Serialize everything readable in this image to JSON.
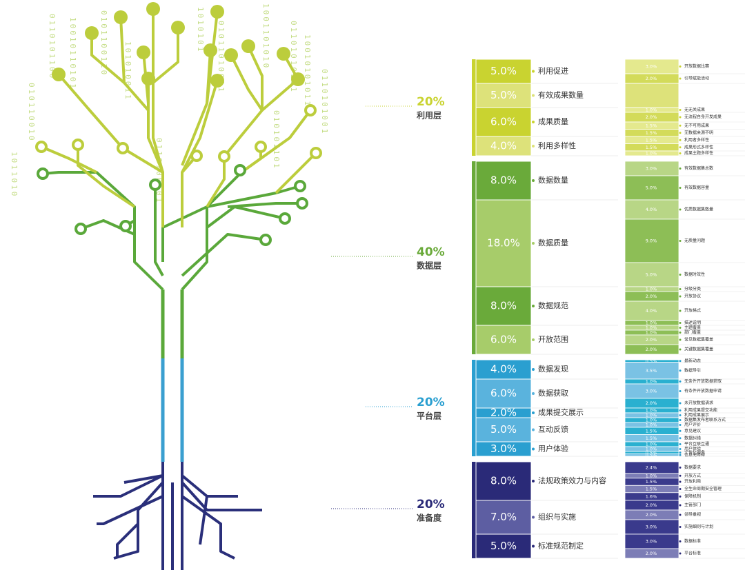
{
  "tree": {
    "binary": [
      "010110010",
      "0110101100",
      "10010110101",
      "0101100110",
      "101010011",
      "0110100101",
      "1010101",
      "01011010011",
      "1001101010",
      "01101010101",
      "10010101011",
      "0110101001",
      "1011010",
      "010101101"
    ]
  },
  "layers": [
    {
      "percent": "20%",
      "name": "利用层",
      "indicators": [
        {
          "value": "5.0%",
          "name": "利用促进",
          "subs": [
            {
              "value": "3.0%",
              "name": "开放数据比赛"
            },
            {
              "value": "2.0%",
              "name": "引导赋能活动"
            }
          ]
        },
        {
          "value": "5.0%",
          "name": "有效成果数量",
          "subs": []
        },
        {
          "value": "6.0%",
          "name": "成果质量",
          "subs": [
            {
              "value": "1.0%",
              "name": "无无关成果"
            },
            {
              "value": "2.0%",
              "name": "无流程自身开发成果"
            },
            {
              "value": "1.5%",
              "name": "无不可用成果"
            },
            {
              "value": "1.5%",
              "name": "无数据来源不明"
            }
          ]
        },
        {
          "value": "4.0%",
          "name": "利用多样性",
          "subs": [
            {
              "value": "1.5%",
              "name": "利用者多样性"
            },
            {
              "value": "1.5%",
              "name": "成果形式多样性"
            },
            {
              "value": "1.0%",
              "name": "成果主题多样性"
            }
          ]
        }
      ]
    },
    {
      "percent": "40%",
      "name": "数据层",
      "indicators": [
        {
          "value": "8.0%",
          "name": "数据数量",
          "subs": [
            {
              "value": "3.0%",
              "name": "有效数据集总数"
            },
            {
              "value": "5.0%",
              "name": "有效数据容量"
            }
          ]
        },
        {
          "value": "18.0%",
          "name": "数据质量",
          "subs": [
            {
              "value": "4.0%",
              "name": "优质数据集数量"
            },
            {
              "value": "9.0%",
              "name": "无质量问题"
            },
            {
              "value": "5.0%",
              "name": "数据时效性"
            }
          ]
        },
        {
          "value": "8.0%",
          "name": "数据规范",
          "subs": [
            {
              "value": "1.0%",
              "name": "分级分类"
            },
            {
              "value": "2.0%",
              "name": "开放协议"
            },
            {
              "value": "4.0%",
              "name": "开放格式"
            },
            {
              "value": "1.0%",
              "name": "描述说明"
            }
          ]
        },
        {
          "value": "6.0%",
          "name": "开放范围",
          "subs": [
            {
              "value": "1.0%",
              "name": "主题覆盖"
            },
            {
              "value": "1.0%",
              "name": "部门覆盖"
            },
            {
              "value": "2.0%",
              "name": "常见数据集覆盖"
            },
            {
              "value": "2.0%",
              "name": "关键数据集覆盖"
            }
          ]
        }
      ]
    },
    {
      "percent": "20%",
      "name": "平台层",
      "indicators": [
        {
          "value": "4.0%",
          "name": "数据发现",
          "subs": [
            {
              "value": "0.5%",
              "name": "最新动态"
            },
            {
              "value": "3.5%",
              "name": "数据导引"
            }
          ]
        },
        {
          "value": "6.0%",
          "name": "数据获取",
          "subs": [
            {
              "value": "1.0%",
              "name": "无条件开放数据获取"
            },
            {
              "value": "3.0%",
              "name": "有条件开放数据申请"
            },
            {
              "value": "2.0%",
              "name": "未开放数据请求"
            }
          ]
        },
        {
          "value": "2.0%",
          "name": "成果提交展示",
          "subs": [
            {
              "value": "1.0%",
              "name": "利用成果提交功能"
            },
            {
              "value": "1.0%",
              "name": "利用成果展示"
            }
          ]
        },
        {
          "value": "5.0%",
          "name": "互动反馈",
          "subs": [
            {
              "value": "1.0%",
              "name": "数据集发布者联系方式"
            },
            {
              "value": "1.0%",
              "name": "用户评价"
            },
            {
              "value": "1.5%",
              "name": "意见建议"
            },
            {
              "value": "1.5%",
              "name": "数据纠错"
            }
          ]
        },
        {
          "value": "3.0%",
          "name": "用户体验",
          "subs": [
            {
              "value": "1.0%",
              "name": "平台互联互通"
            },
            {
              "value": "1.0%",
              "name": "用户体验"
            },
            {
              "value": "0.5%",
              "name": "个性化服务"
            },
            {
              "value": "0.5%",
              "name": "信息无障碍"
            }
          ]
        }
      ]
    },
    {
      "percent": "20%",
      "name": "准备度",
      "indicators": [
        {
          "value": "8.0%",
          "name": "法规政策效力与内容",
          "subs": [
            {
              "value": "2.4%",
              "name": "数据要求"
            },
            {
              "value": "1.0%",
              "name": "开放方式"
            },
            {
              "value": "1.5%",
              "name": "开放利用"
            },
            {
              "value": "1.5%",
              "name": "全生命周期安全管理"
            },
            {
              "value": "1.6%",
              "name": "保障机制"
            }
          ]
        },
        {
          "value": "7.0%",
          "name": "组织与实施",
          "subs": [
            {
              "value": "2.0%",
              "name": "主管部门"
            },
            {
              "value": "2.0%",
              "name": "领导重视"
            },
            {
              "value": "3.0%",
              "name": "实施细则与计划"
            }
          ]
        },
        {
          "value": "5.0%",
          "name": "标准规范制定",
          "subs": [
            {
              "value": "3.0%",
              "name": "数据标准"
            },
            {
              "value": "2.0%",
              "name": "平台标准"
            }
          ]
        }
      ]
    }
  ]
}
